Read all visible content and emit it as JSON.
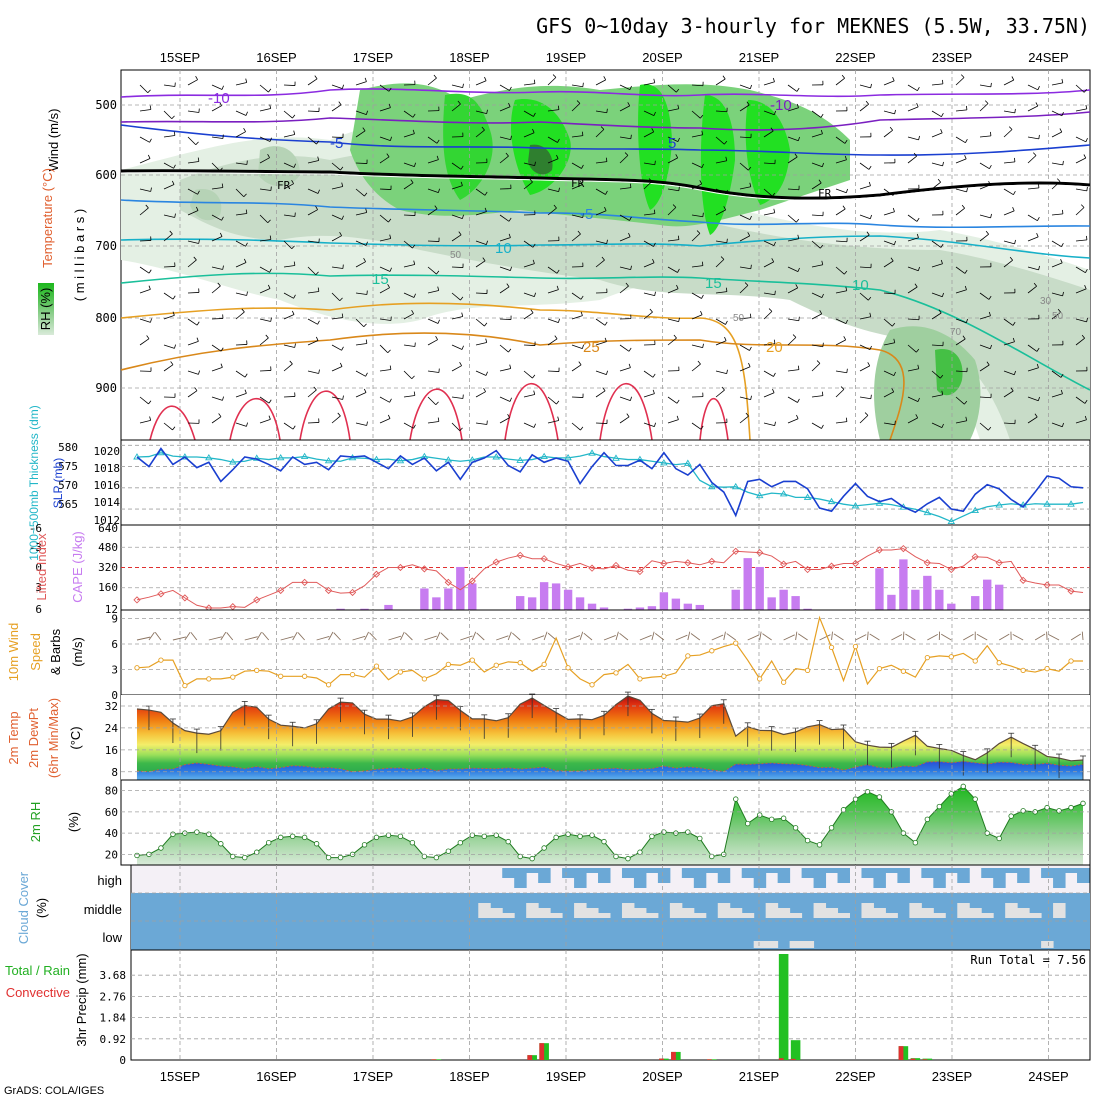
{
  "header": {
    "title": "GFS 0~10day 3-hourly for MEKNES (5.5W, 33.75N)",
    "credit": "GrADS: COLA/IGES",
    "run_total": "Run Total = 7.56"
  },
  "colors": {
    "rh_fill": "#2ca02c",
    "temp_line_warm": "#e6a023",
    "temp_line_cold": "#1f5fe0",
    "cape_bar": "#c77cf0",
    "lifted_index": "#e05a5a",
    "wind_speed": "#e6a023",
    "slp": "#1a3fd0",
    "thickness": "#23b7c8",
    "cloud": "#6ba8d6",
    "precip_total": "#22c022",
    "precip_conv": "#e03030"
  },
  "days": [
    "15SEP",
    "16SEP",
    "17SEP",
    "18SEP",
    "19SEP",
    "20SEP",
    "21SEP",
    "22SEP",
    "23SEP",
    "24SEP"
  ],
  "panels": {
    "upper_air": {
      "ylabel_wind": "Wind (m/s)",
      "ylabel_temp": "Temperature (°C)",
      "ylabel_rh": "RH (%)",
      "ylabel_p": "( m i l l i b a r s )",
      "ticks": [
        "500",
        "600",
        "700",
        "800",
        "900"
      ],
      "fr_label": "FR",
      "temp_labels": [
        "-10",
        "-10",
        "-5",
        "5",
        "-5",
        "10",
        "15",
        "15",
        "10",
        "25",
        "20"
      ],
      "rh_labels": [
        "30",
        "50",
        "50",
        "50",
        "70"
      ]
    },
    "slp": {
      "ylabel_left": "1000~500mb Thickness (dm)",
      "ylabel_right": "SLP (mb)",
      "ticks_left": [
        "580",
        "575",
        "570",
        "565"
      ],
      "ticks_right": [
        "1020",
        "1018",
        "1016",
        "1014",
        "1012"
      ]
    },
    "cape": {
      "ylabel_left": "Lifted Index",
      "ylabel_right": "CAPE (J/kg)",
      "ticks_left": [
        "-6",
        "-3",
        "0",
        "3",
        "6"
      ],
      "ticks_right": [
        "640",
        "480",
        "320",
        "160",
        "12"
      ]
    },
    "wind10": {
      "ylabel_a": "10m Wind",
      "ylabel_b": "Speed",
      "ylabel_c": "& Barbs",
      "ylabel_unit": "(m/s)",
      "ticks": [
        "9",
        "6",
        "3",
        "0"
      ]
    },
    "temp2m": {
      "ylabel_a": "2m Temp",
      "ylabel_b": "2m DewPt",
      "ylabel_c": "(6hr Min/Max)",
      "ylabel_unit": "(°C)",
      "ticks": [
        "32",
        "24",
        "16",
        "8"
      ]
    },
    "rh2m": {
      "ylabel_a": "2m RH",
      "ylabel_unit": "(%)",
      "ticks": [
        "80",
        "60",
        "40",
        "20"
      ]
    },
    "cloud": {
      "ylabel_a": "Cloud Cover",
      "ylabel_unit": "(%)",
      "levels": [
        "high",
        "middle",
        "low"
      ]
    },
    "precip": {
      "ylabel_a": "Total / Rain",
      "ylabel_b": "Convective",
      "ylabel_c": "3hr Precip (mm)",
      "ticks": [
        "3.68",
        "2.76",
        "1.84",
        "0.92",
        "0"
      ]
    }
  },
  "chart_data": [
    {
      "type": "line",
      "title": "SLP (mb) and 1000~500mb Thickness (dm)",
      "x_unit": "3-hour steps from 15SEP",
      "series": [
        {
          "name": "SLP (mb)",
          "axis": "right",
          "ylim": [
            1012.5,
            1020.5
          ],
          "values": [
            1018.9,
            1018.0,
            1019.7,
            1018.2,
            1018.9,
            1017.9,
            1018.4,
            1016.6,
            1017.7,
            1018.9,
            1018.7,
            1018.2,
            1017.6,
            1018.9,
            1018.2,
            1018.4,
            1017.7,
            1019.0,
            1018.9,
            1019.0,
            1018.4,
            1017.8,
            1019.0,
            1018.2,
            1018.8,
            1017.6,
            1018.4,
            1016.8,
            1018.4,
            1018.8,
            1019.5,
            1018.1,
            1017.5,
            1019.1,
            1018.4,
            1018.8,
            1018.5,
            1016.4,
            1018.0,
            1019.3,
            1018.1,
            1018.1,
            1018.6,
            1017.8,
            1019.3,
            1017.8,
            1017.2,
            1018.2,
            1016.5,
            1015.6,
            1013.4,
            1016.6,
            1016.8,
            1016.1,
            1016.6,
            1016.6,
            1015.9,
            1014.1,
            1013.8,
            1015.2,
            1016.4,
            1015.2,
            1014.7,
            1015.0,
            1014.2,
            1013.7,
            1014.5,
            1015.1,
            1014.0,
            1013.8,
            1015.4,
            1016.3,
            1015.9,
            1014.9,
            1014.2,
            1015.6,
            1017.1,
            1016.9,
            1016.1,
            1016.0
          ]
        },
        {
          "name": "1000~500mb Thickness (dm)",
          "axis": "left",
          "ylim": [
            562,
            582
          ],
          "values": [
            578.0,
            578.1,
            579.0,
            578.2,
            578.0,
            578.0,
            577.8,
            577.4,
            576.8,
            577.0,
            577.7,
            577.4,
            577.8,
            577.8,
            578.1,
            577.5,
            577.1,
            577.0,
            577.8,
            577.7,
            577.4,
            577.5,
            577.1,
            577.4,
            578.1,
            577.7,
            577.3,
            577.0,
            577.3,
            578.0,
            578.0,
            577.5,
            577.2,
            577.4,
            578.1,
            577.8,
            577.8,
            578.2,
            578.9,
            578.1,
            577.7,
            577.4,
            577.4,
            577.0,
            576.6,
            576.2,
            576.5,
            572.5,
            571.0,
            570.9,
            571.0,
            569.7,
            568.9,
            569.5,
            569.3,
            568.5,
            568.5,
            568.1,
            567.5,
            566.9,
            566.5,
            566.8,
            567.1,
            566.8,
            566.2,
            565.7,
            564.9,
            564.0,
            562.8,
            564.1,
            565.4,
            566.3,
            566.7,
            567.0,
            566.7,
            567.0,
            566.9,
            566.9,
            566.9,
            567.3
          ]
        }
      ]
    },
    {
      "type": "bar",
      "title": "CAPE (J/kg) and Lifted Index",
      "ylim_cape": [
        12,
        640
      ],
      "ylim_li": [
        6,
        -6
      ],
      "cape_values": [
        0,
        0,
        0,
        0,
        0,
        0,
        0,
        0,
        0,
        0,
        0,
        0,
        0,
        0,
        0,
        0,
        0,
        10,
        0,
        10,
        0,
        40,
        0,
        0,
        170,
        100,
        170,
        340,
        210,
        0,
        0,
        0,
        110,
        100,
        220,
        210,
        160,
        100,
        50,
        20,
        0,
        10,
        20,
        30,
        140,
        90,
        50,
        40,
        0,
        0,
        160,
        410,
        340,
        100,
        160,
        110,
        10,
        0,
        0,
        0,
        0,
        0,
        330,
        120,
        400,
        160,
        270,
        160,
        50,
        0,
        110,
        240,
        200,
        0,
        0,
        0,
        0,
        0,
        0,
        0
      ],
      "li_values": [
        4.8,
        4.4,
        3.9,
        3.4,
        4.5,
        5.6,
        6.0,
        6.0,
        5.8,
        5.9,
        4.8,
        4.1,
        3.4,
        2.2,
        2.2,
        2.2,
        3.4,
        3.8,
        3.7,
        2.7,
        1.0,
        0.0,
        0.0,
        -0.4,
        0.2,
        0.5,
        2.2,
        3.3,
        2.0,
        0.2,
        -0.8,
        -1.4,
        -1.8,
        -1.3,
        -1.3,
        -0.6,
        -0.1,
        -0.6,
        0.1,
        0.2,
        -0.3,
        0.4,
        0.6,
        -1.0,
        -0.6,
        -0.9,
        -0.7,
        -0.4,
        -0.9,
        -0.7,
        -2.4,
        -2.3,
        -2.2,
        -1.7,
        -0.5,
        -0.9,
        0.3,
        0.3,
        -0.2,
        -0.6,
        -0.6,
        -1.7,
        -2.6,
        -2.6,
        -2.8,
        -1.6,
        -0.7,
        -0.6,
        0.3,
        -0.2,
        -1.6,
        -1.5,
        -0.7,
        -0.9,
        1.9,
        2.3,
        2.6,
        2.6,
        3.5,
        3.7
      ]
    },
    {
      "type": "line",
      "title": "10m Wind Speed (m/s)",
      "ylim": [
        0,
        10
      ],
      "values": [
        3.2,
        3.3,
        4.1,
        4.1,
        1.1,
        1.9,
        1.9,
        1.9,
        2.1,
        2.8,
        2.9,
        2.8,
        2.2,
        2.2,
        2.2,
        2.0,
        1.2,
        2.4,
        2.4,
        2.1,
        3.4,
        1.8,
        2.7,
        2.9,
        1.9,
        2.5,
        3.6,
        3.5,
        4.1,
        2.7,
        3.5,
        3.9,
        3.8,
        2.8,
        3.6,
        6.7,
        3.2,
        1.9,
        1.2,
        2.4,
        2.6,
        3.6,
        1.9,
        2.1,
        2.2,
        2.6,
        4.6,
        4.7,
        5.2,
        5.7,
        6.1,
        4.1,
        1.9,
        4.0,
        1.5,
        3.1,
        2.9,
        9.1,
        5.6,
        1.7,
        5.7,
        1.3,
        3.1,
        3.5,
        2.8,
        2.1,
        4.4,
        4.6,
        4.5,
        4.9,
        4.0,
        5.8,
        3.8,
        3.4,
        2.9,
        2.7,
        3.1,
        2.8,
        4.0,
        4.0
      ]
    },
    {
      "type": "area",
      "title": "2m Temp and 2m DewPt (°C)",
      "ylim": [
        5,
        36
      ],
      "temp_values": [
        30.9,
        30.5,
        29.7,
        25.8,
        23.0,
        22.1,
        21.7,
        23.0,
        29.7,
        32.2,
        31.5,
        27.2,
        25.0,
        24.6,
        24.0,
        25.5,
        30.9,
        33.4,
        33.1,
        29.0,
        27.2,
        27.2,
        26.5,
        28.0,
        31.7,
        34.3,
        34.0,
        30.4,
        27.3,
        27.3,
        26.6,
        27.7,
        32.7,
        34.9,
        32.2,
        29.6,
        27.1,
        27.3,
        27.0,
        28.6,
        32.5,
        35.6,
        34.1,
        29.3,
        26.7,
        26.5,
        26.1,
        27.6,
        32.1,
        32.8,
        21.0,
        24.4,
        23.1,
        23.0,
        21.6,
        22.5,
        24.4,
        25.2,
        23.4,
        23.6,
        18.9,
        17.7,
        17.0,
        16.9,
        19.2,
        21.3,
        17.3,
        16.5,
        15.8,
        13.9,
        12.4,
        14.9,
        18.3,
        20.6,
        18.3,
        16.2,
        13.6,
        13.0,
        12.0,
        12.3
      ],
      "dew_values": [
        8.3,
        8.0,
        8.9,
        9.0,
        10.6,
        11.2,
        10.7,
        10.1,
        9.8,
        9.1,
        9.9,
        9.1,
        9.5,
        10.2,
        10.0,
        9.4,
        9.5,
        9.1,
        8.0,
        8.3,
        8.9,
        9.3,
        9.4,
        8.8,
        9.4,
        8.4,
        9.0,
        9.0,
        9.3,
        9.2,
        9.1,
        9.4,
        9.0,
        9.3,
        9.7,
        8.4,
        8.3,
        8.3,
        8.8,
        9.1,
        9.3,
        8.7,
        9.0,
        9.2,
        10.1,
        9.3,
        9.8,
        9.4,
        8.7,
        8.1,
        10.8,
        10.7,
        10.9,
        11.2,
        10.9,
        10.8,
        10.3,
        9.5,
        9.6,
        8.6,
        9.7,
        10.6,
        9.5,
        9.3,
        10.1,
        9.9,
        11.6,
        11.7,
        11.3,
        11.8,
        11.3,
        10.8,
        11.5,
        11.4,
        10.7,
        10.7,
        11.1,
        10.4,
        10.1,
        10.7
      ]
    },
    {
      "type": "area",
      "title": "2m RH (%)",
      "ylim": [
        10,
        90
      ],
      "values": [
        19,
        20,
        26,
        39,
        40,
        41,
        39,
        30,
        18,
        17,
        22,
        31,
        36,
        37,
        36,
        30,
        17,
        17,
        20,
        29,
        36,
        38,
        37,
        31,
        18,
        17,
        23,
        31,
        38,
        37,
        38,
        32,
        18,
        16,
        26,
        36,
        39,
        37,
        38,
        32,
        18,
        16,
        22,
        37,
        41,
        40,
        41,
        35,
        18,
        20,
        72,
        49,
        57,
        53,
        54,
        45,
        33,
        29,
        45,
        62,
        72,
        79,
        74,
        60,
        40,
        31,
        53,
        65,
        77,
        84,
        72,
        40,
        35,
        56,
        61,
        60,
        64,
        61,
        64,
        68
      ]
    },
    {
      "type": "bar",
      "title": "3hr Precip (mm)",
      "ylim": [
        0,
        4.6
      ],
      "total_values": [
        0,
        0,
        0,
        0,
        0,
        0,
        0,
        0,
        0,
        0,
        0,
        0,
        0,
        0,
        0,
        0,
        0,
        0,
        0,
        0,
        0,
        0,
        0,
        0,
        0,
        0.03,
        0,
        0,
        0,
        0,
        0,
        0,
        0,
        0.21,
        0.73,
        0,
        0,
        0,
        0,
        0,
        0,
        0,
        0,
        0,
        0.06,
        0.35,
        0,
        0,
        0.03,
        0,
        0,
        0,
        0,
        0,
        4.6,
        0.86,
        0,
        0,
        0,
        0,
        0,
        0,
        0,
        0,
        0.6,
        0.08,
        0.06,
        0,
        0,
        0,
        0,
        0,
        0,
        0,
        0,
        0,
        0,
        0,
        0,
        0
      ],
      "conv_values": [
        0,
        0,
        0,
        0,
        0,
        0,
        0,
        0,
        0,
        0,
        0,
        0,
        0,
        0,
        0,
        0,
        0,
        0,
        0,
        0,
        0,
        0,
        0,
        0,
        0,
        0.03,
        0,
        0,
        0,
        0,
        0,
        0,
        0,
        0.21,
        0.73,
        0,
        0,
        0,
        0,
        0,
        0,
        0,
        0,
        0,
        0.06,
        0.35,
        0,
        0,
        0.03,
        0,
        0,
        0,
        0,
        0,
        0.08,
        0.05,
        0,
        0,
        0,
        0,
        0,
        0,
        0,
        0,
        0.6,
        0.06,
        0.03,
        0,
        0,
        0,
        0,
        0,
        0,
        0,
        0,
        0,
        0,
        0,
        0,
        0
      ]
    }
  ]
}
